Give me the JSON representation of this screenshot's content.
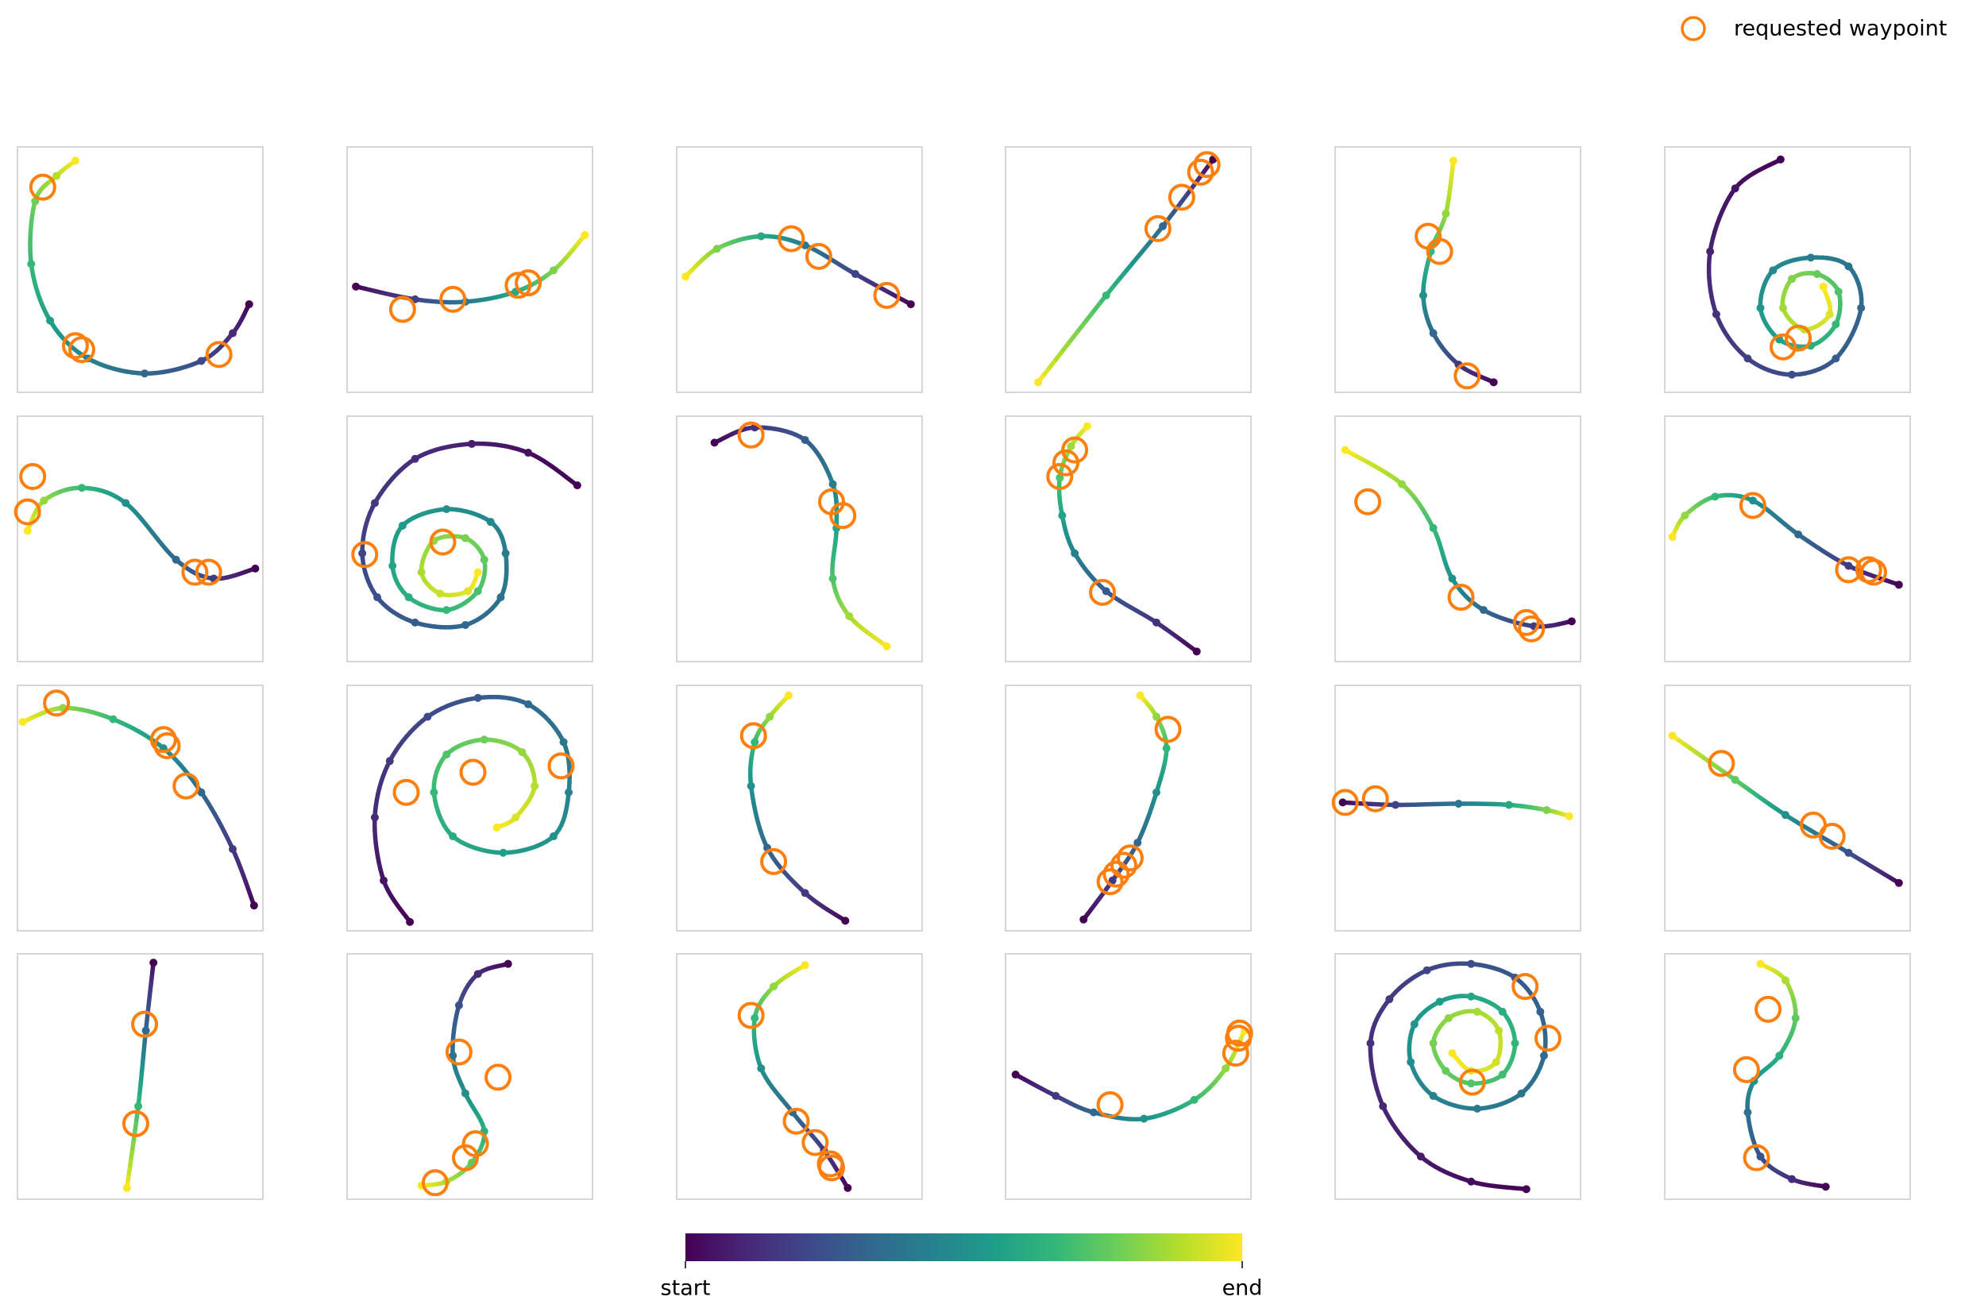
{
  "legend": {
    "label": "requested waypoint",
    "color": "#ff7f0e",
    "loc": "upper right"
  },
  "colorbar": {
    "colormap": [
      "#440154",
      "#482878",
      "#3e4989",
      "#31688e",
      "#26828e",
      "#1f9e89",
      "#35b779",
      "#6ece58",
      "#b5de2b",
      "#fde725"
    ],
    "ticklabels": [
      "start",
      "end"
    ]
  },
  "chart_data": [
    {
      "type": "trajectory",
      "xlim": [
        0,
        100
      ],
      "ylim": [
        0,
        100
      ],
      "x": [
        94.4,
        87.7,
        74.9,
        51.8,
        28.7,
        13.3,
        5.6,
        7.2,
        15.9,
        23.6
      ],
      "y": [
        35.9,
        24.1,
        12.8,
        7.7,
        13.8,
        29.2,
        52.3,
        77.9,
        88.2,
        94.4
      ],
      "waypoints": {
        "x": [
          10.3,
          23.6,
          26.2,
          82.1
        ],
        "y": [
          83.6,
          19.0,
          17.4,
          15.4
        ]
      }
    },
    {
      "type": "trajectory",
      "xlim": [
        0,
        100
      ],
      "ylim": [
        0,
        100
      ],
      "x": [
        3.6,
        27.7,
        48.2,
        68.7,
        84.1,
        96.9
      ],
      "y": [
        43.1,
        37.9,
        36.9,
        41.0,
        49.7,
        64.1
      ],
      "waypoints": {
        "x": [
          22.6,
          43.1,
          69.7,
          73.8
        ],
        "y": [
          33.8,
          37.9,
          43.6,
          44.6
        ]
      }
    },
    {
      "type": "trajectory",
      "xlim": [
        0,
        100
      ],
      "ylim": [
        0,
        100
      ],
      "x": [
        95.4,
        72.8,
        52.3,
        34.4,
        16.4,
        3.6
      ],
      "y": [
        35.9,
        48.2,
        59.9,
        63.6,
        58.5,
        47.2
      ],
      "waypoints": {
        "x": [
          46.7,
          57.9,
          85.6
        ],
        "y": [
          62.6,
          55.4,
          39.5
        ]
      }
    },
    {
      "type": "trajectory",
      "xlim": [
        0,
        100
      ],
      "ylim": [
        0,
        100
      ],
      "x": [
        84.6,
        64.1,
        41.0,
        13.3
      ],
      "y": [
        94.9,
        67.7,
        39.5,
        4.1
      ],
      "waypoints": {
        "x": [
          82.1,
          79.5,
          71.8,
          62.1
        ],
        "y": [
          92.8,
          89.7,
          79.5,
          66.7
        ]
      }
    },
    {
      "type": "trajectory",
      "xlim": [
        0,
        100
      ],
      "ylim": [
        0,
        100
      ],
      "x": [
        64.6,
        50.3,
        40.0,
        35.9,
        39.0,
        45.1,
        48.2
      ],
      "y": [
        4.1,
        11.3,
        24.1,
        39.5,
        57.4,
        72.8,
        94.4
      ],
      "waypoints": {
        "x": [
          37.9,
          42.6,
          53.8
        ],
        "y": [
          63.6,
          57.4,
          6.7
        ]
      }
    },
    {
      "type": "trajectory",
      "xlim": [
        0,
        100
      ],
      "ylim": [
        0,
        100
      ],
      "x": [
        47.2,
        28.7,
        18.5,
        21.0,
        33.8,
        51.8,
        69.7,
        80.0,
        74.9,
        59.5,
        44.1,
        39.0,
        46.7,
        59.5,
        69.7,
        70.8,
        62.1,
        51.8,
        48.2,
        56.9,
        67.2,
        64.6
      ],
      "y": [
        94.9,
        83.1,
        57.4,
        31.8,
        13.8,
        7.2,
        13.8,
        34.4,
        51.3,
        54.9,
        49.7,
        34.4,
        21.5,
        19.0,
        27.7,
        41.0,
        48.2,
        46.2,
        34.4,
        25.6,
        31.8,
        43.1
      ],
      "waypoints": {
        "x": [
          48.2,
          54.4
        ],
        "y": [
          18.5,
          22.1
        ]
      }
    },
    {
      "type": "trajectory",
      "xlim": [
        0,
        100
      ],
      "ylim": [
        0,
        100
      ],
      "x": [
        96.9,
        80.0,
        64.6,
        44.1,
        26.2,
        10.8,
        4.1
      ],
      "y": [
        37.9,
        33.8,
        41.5,
        64.6,
        70.8,
        65.6,
        53.3
      ],
      "waypoints": {
        "x": [
          6.2,
          4.1,
          72.3,
          77.9
        ],
        "y": [
          75.4,
          61.0,
          36.4,
          36.4
        ]
      }
    },
    {
      "type": "trajectory",
      "xlim": [
        0,
        100
      ],
      "ylim": [
        0,
        100
      ],
      "x": [
        93.8,
        73.8,
        50.8,
        27.7,
        11.3,
        6.2,
        12.3,
        27.7,
        48.2,
        62.6,
        64.6,
        58.5,
        40.5,
        22.6,
        18.5,
        25.1,
        40.5,
        53.3,
        55.9,
        48.2,
        35.4,
        30.3,
        37.9,
        49.2,
        53.3
      ],
      "y": [
        71.8,
        85.1,
        88.7,
        82.6,
        64.6,
        44.1,
        26.2,
        15.9,
        14.9,
        26.2,
        44.1,
        56.9,
        62.1,
        55.4,
        39.0,
        26.2,
        21.0,
        28.7,
        41.5,
        50.3,
        49.2,
        36.4,
        27.7,
        28.7,
        36.4
      ],
      "waypoints": {
        "x": [
          7.2,
          39.0
        ],
        "y": [
          43.6,
          48.7
        ]
      }
    },
    {
      "type": "trajectory",
      "xlim": [
        0,
        100
      ],
      "ylim": [
        0,
        100
      ],
      "x": [
        15.4,
        31.8,
        52.3,
        63.6,
        65.1,
        63.6,
        70.3,
        85.6
      ],
      "y": [
        89.2,
        95.4,
        90.3,
        72.3,
        54.4,
        33.8,
        18.5,
        6.2
      ],
      "waypoints": {
        "x": [
          30.3,
          63.1,
          67.7
        ],
        "y": [
          92.3,
          65.1,
          59.5
        ]
      }
    },
    {
      "type": "trajectory",
      "xlim": [
        0,
        100
      ],
      "ylim": [
        0,
        100
      ],
      "x": [
        77.9,
        61.5,
        41.0,
        28.2,
        23.1,
        22.1,
        26.7,
        33.3
      ],
      "y": [
        4.1,
        15.9,
        28.7,
        44.1,
        59.5,
        74.9,
        87.7,
        95.9
      ],
      "waypoints": {
        "x": [
          22.1,
          24.6,
          28.2,
          39.5
        ],
        "y": [
          75.4,
          81.0,
          86.2,
          28.2
        ]
      }
    },
    {
      "type": "trajectory",
      "xlim": [
        0,
        100
      ],
      "ylim": [
        0,
        100
      ],
      "x": [
        96.4,
        81.0,
        60.5,
        47.7,
        40.0,
        27.2,
        4.1
      ],
      "y": [
        16.4,
        14.4,
        21.0,
        33.8,
        54.4,
        72.3,
        86.2
      ],
      "waypoints": {
        "x": [
          13.3,
          51.3,
          77.9,
          80.0
        ],
        "y": [
          65.1,
          26.2,
          15.9,
          13.3
        ]
      }
    },
    {
      "type": "trajectory",
      "xlim": [
        0,
        100
      ],
      "ylim": [
        0,
        100
      ],
      "x": [
        95.4,
        74.9,
        54.4,
        35.9,
        20.5,
        8.2,
        3.1
      ],
      "y": [
        31.3,
        39.0,
        51.8,
        65.6,
        67.2,
        59.5,
        50.8
      ],
      "waypoints": {
        "x": [
          35.9,
          74.9,
          83.1,
          85.1
        ],
        "y": [
          63.6,
          37.4,
          37.4,
          36.4
        ]
      }
    },
    {
      "type": "trajectory",
      "xlim": [
        0,
        100
      ],
      "ylim": [
        0,
        100
      ],
      "x": [
        96.4,
        87.7,
        74.9,
        59.5,
        39.0,
        18.5,
        2.1
      ],
      "y": [
        10.3,
        33.3,
        56.4,
        74.4,
        86.2,
        90.8,
        85.1
      ],
      "waypoints": {
        "x": [
          15.9,
          59.5,
          61.0,
          68.7
        ],
        "y": [
          92.8,
          77.9,
          75.4,
          59.0
        ]
      }
    },
    {
      "type": "trajectory",
      "xlim": [
        0,
        100
      ],
      "ylim": [
        0,
        100
      ],
      "x": [
        25.6,
        14.9,
        11.3,
        17.4,
        32.8,
        53.3,
        73.8,
        88.2,
        90.3,
        84.1,
        63.6,
        43.1,
        35.4,
        40.5,
        55.9,
        71.3,
        76.4,
        68.7,
        61.0
      ],
      "y": [
        3.6,
        20.5,
        46.2,
        69.2,
        87.2,
        94.9,
        92.3,
        76.9,
        56.4,
        38.5,
        31.8,
        38.5,
        56.4,
        71.8,
        77.9,
        72.8,
        59.0,
        46.2,
        42.1
      ],
      "waypoints": {
        "x": [
          24.1,
          51.3,
          87.2
        ],
        "y": [
          56.4,
          64.6,
          67.2
        ]
      }
    },
    {
      "type": "trajectory",
      "xlim": [
        0,
        100
      ],
      "ylim": [
        0,
        100
      ],
      "x": [
        68.7,
        52.3,
        36.9,
        30.3,
        31.8,
        37.9,
        45.6
      ],
      "y": [
        4.1,
        15.4,
        33.8,
        59.0,
        76.9,
        87.2,
        95.9
      ],
      "waypoints": {
        "x": [
          31.3,
          39.5
        ],
        "y": [
          79.5,
          28.2
        ]
      }
    },
    {
      "type": "trajectory",
      "xlim": [
        0,
        100
      ],
      "ylim": [
        0,
        100
      ],
      "x": [
        31.8,
        43.6,
        53.8,
        61.5,
        65.6,
        61.5,
        54.9
      ],
      "y": [
        4.6,
        20.5,
        35.9,
        56.4,
        74.4,
        87.2,
        95.9
      ],
      "waypoints": {
        "x": [
          42.6,
          45.1,
          48.2,
          50.8,
          66.2
        ],
        "y": [
          20.0,
          23.1,
          26.7,
          29.7,
          82.1
        ]
      }
    },
    {
      "type": "trajectory",
      "xlim": [
        0,
        100
      ],
      "ylim": [
        0,
        100
      ],
      "x": [
        3.1,
        24.6,
        50.3,
        70.8,
        86.2,
        95.4
      ],
      "y": [
        52.3,
        51.3,
        51.8,
        51.3,
        49.2,
        46.7
      ],
      "waypoints": {
        "x": [
          4.1,
          16.4
        ],
        "y": [
          52.3,
          53.8
        ]
      }
    },
    {
      "type": "trajectory",
      "xlim": [
        0,
        100
      ],
      "ylim": [
        0,
        100
      ],
      "x": [
        95.4,
        74.9,
        49.2,
        28.7,
        3.1
      ],
      "y": [
        19.5,
        31.8,
        47.2,
        61.5,
        79.5
      ],
      "waypoints": {
        "x": [
          23.1,
          60.5,
          68.2
        ],
        "y": [
          68.2,
          43.1,
          38.5
        ]
      }
    },
    {
      "type": "trajectory",
      "xlim": [
        0,
        100
      ],
      "ylim": [
        0,
        100
      ],
      "x": [
        55.4,
        52.3,
        49.2,
        44.6
      ],
      "y": [
        96.4,
        68.7,
        37.9,
        4.6
      ],
      "waypoints": {
        "x": [
          51.8,
          48.2
        ],
        "y": [
          71.3,
          30.8
        ]
      }
    },
    {
      "type": "trajectory",
      "xlim": [
        0,
        100
      ],
      "ylim": [
        0,
        100
      ],
      "x": [
        65.6,
        53.3,
        45.6,
        43.1,
        48.2,
        55.9,
        50.8,
        40.5,
        30.3
      ],
      "y": [
        95.9,
        91.8,
        79.0,
        58.5,
        43.1,
        27.7,
        14.9,
        7.2,
        5.6
      ],
      "waypoints": {
        "x": [
          45.6,
          61.5,
          52.3,
          48.2,
          35.9
        ],
        "y": [
          60.0,
          49.7,
          22.6,
          16.9,
          6.7
        ]
      }
    },
    {
      "type": "trajectory",
      "xlim": [
        0,
        100
      ],
      "ylim": [
        0,
        100
      ],
      "x": [
        69.7,
        60.0,
        47.2,
        34.4,
        31.8,
        39.5,
        52.3
      ],
      "y": [
        4.6,
        20.0,
        35.4,
        53.3,
        73.8,
        86.7,
        95.4
      ],
      "waypoints": {
        "x": [
          30.3,
          48.7,
          56.4,
          62.6,
          63.1
        ],
        "y": [
          74.9,
          31.8,
          23.1,
          14.4,
          12.8
        ]
      }
    },
    {
      "type": "trajectory",
      "xlim": [
        0,
        100
      ],
      "ylim": [
        0,
        100
      ],
      "x": [
        4.1,
        20.5,
        35.9,
        56.4,
        76.9,
        89.7,
        97.4
      ],
      "y": [
        50.8,
        42.1,
        35.4,
        32.8,
        40.5,
        53.3,
        68.7
      ],
      "waypoints": {
        "x": [
          42.6,
          93.8,
          94.9,
          95.4
        ],
        "y": [
          38.5,
          59.5,
          65.6,
          67.7
        ]
      }
    },
    {
      "type": "trajectory",
      "xlim": [
        0,
        100
      ],
      "ylim": [
        0,
        100
      ],
      "x": [
        77.9,
        55.4,
        34.9,
        19.5,
        14.4,
        22.1,
        37.4,
        55.4,
        73.3,
        83.6,
        85.1,
        75.9,
        57.9,
        40.0,
        30.8,
        32.3,
        42.6,
        55.4,
        68.2,
        73.3,
        68.2,
        55.4,
        45.1,
        40.0,
        46.2,
        57.9,
        66.7,
        65.6,
        55.4,
        47.7
      ],
      "y": [
        4.1,
        7.2,
        17.4,
        37.9,
        63.6,
        81.5,
        93.3,
        95.9,
        90.3,
        76.4,
        58.5,
        43.1,
        36.9,
        42.1,
        55.9,
        71.3,
        80.5,
        82.6,
        76.4,
        63.6,
        50.8,
        47.2,
        52.3,
        63.6,
        73.8,
        76.4,
        68.7,
        55.9,
        52.3,
        59.5
      ],
      "waypoints": {
        "x": [
          77.4,
          86.7,
          55.9
        ],
        "y": [
          86.7,
          65.6,
          47.7
        ]
      }
    },
    {
      "type": "trajectory",
      "xlim": [
        0,
        100
      ],
      "ylim": [
        0,
        100
      ],
      "x": [
        65.6,
        51.8,
        39.0,
        33.8,
        36.4,
        46.7,
        53.3,
        49.2,
        39.0
      ],
      "y": [
        5.1,
        8.2,
        17.4,
        35.4,
        48.2,
        58.5,
        73.8,
        89.2,
        95.9
      ],
      "waypoints": {
        "x": [
          42.1,
          33.3,
          37.4
        ],
        "y": [
          77.4,
          52.8,
          16.9
        ]
      }
    }
  ]
}
